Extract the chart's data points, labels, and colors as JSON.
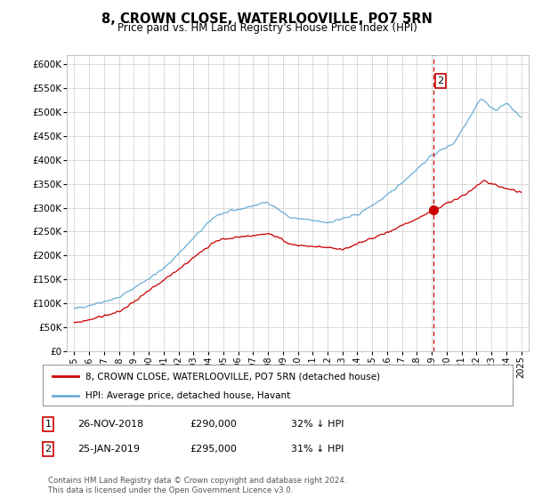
{
  "title": "8, CROWN CLOSE, WATERLOOVILLE, PO7 5RN",
  "subtitle": "Price paid vs. HM Land Registry's House Price Index (HPI)",
  "ylabel_ticks": [
    "£0",
    "£50K",
    "£100K",
    "£150K",
    "£200K",
    "£250K",
    "£300K",
    "£350K",
    "£400K",
    "£450K",
    "£500K",
    "£550K",
    "£600K"
  ],
  "ylim": [
    0,
    620000
  ],
  "ytick_vals": [
    0,
    50000,
    100000,
    150000,
    200000,
    250000,
    300000,
    350000,
    400000,
    450000,
    500000,
    550000,
    600000
  ],
  "sale1_date": 2018.92,
  "sale1_price": 290000,
  "sale2_date": 2019.08,
  "sale2_price": 295000,
  "hpi_color": "#6baed6",
  "price_color": "#cc0000",
  "vline_color": "#cc0000",
  "annotation_box_color": "#cc0000",
  "grid_color": "#cccccc",
  "background_color": "#ffffff",
  "legend_label_red": "8, CROWN CLOSE, WATERLOOVILLE, PO7 5RN (detached house)",
  "legend_label_blue": "HPI: Average price, detached house, Havant",
  "footer_text": "Contains HM Land Registry data © Crown copyright and database right 2024.\nThis data is licensed under the Open Government Licence v3.0.",
  "table_rows": [
    {
      "num": "1",
      "date": "26-NOV-2018",
      "price": "£290,000",
      "hpi": "32% ↓ HPI"
    },
    {
      "num": "2",
      "date": "25-JAN-2019",
      "price": "£295,000",
      "hpi": "31% ↓ HPI"
    }
  ],
  "hpi_seed": 42,
  "red_seed": 99
}
